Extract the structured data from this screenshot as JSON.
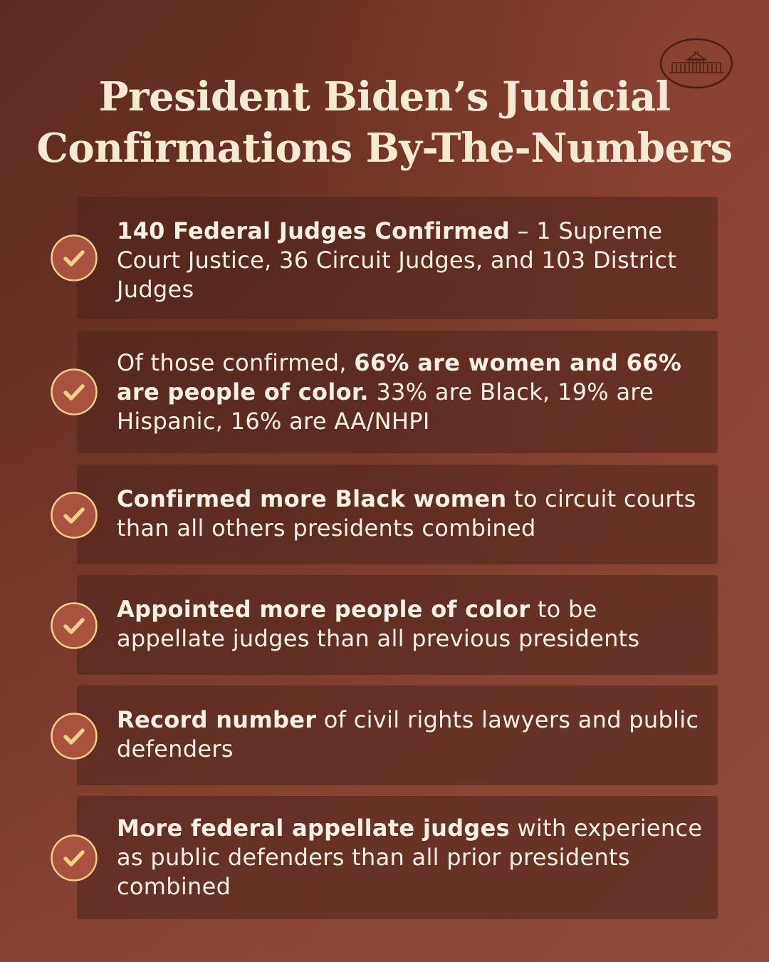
{
  "title": {
    "line1": "President Biden’s Judicial",
    "line2": "Confirmations By-The-Numbers"
  },
  "logo_icon": "white-house-icon",
  "colors": {
    "title": "#f7ead3",
    "text": "#fbf1e4",
    "check_fill": "#a9523f",
    "check_stroke": "#f3cf86"
  },
  "items": [
    {
      "bold": "140 Federal Judges Confirmed",
      "rest": " – 1 Supreme Court Justice, 36 Circuit Judges, and 103 District Judges"
    },
    {
      "pre": "Of those confirmed, ",
      "bold": "66% are women and 66% are people of color.",
      "rest": " 33% are Black, 19% are Hispanic, 16% are AA/NHPI"
    },
    {
      "bold": "Confirmed more Black women",
      "rest": " to circuit courts than all others presidents combined"
    },
    {
      "bold": "Appointed more people of color",
      "rest": " to be appellate judges than all previous presidents"
    },
    {
      "bold": "Record number",
      "rest": " of civil rights lawyers and public defenders"
    },
    {
      "bold": "More federal appellate judges",
      "rest": " with experience as public defenders than all prior presidents combined"
    }
  ]
}
